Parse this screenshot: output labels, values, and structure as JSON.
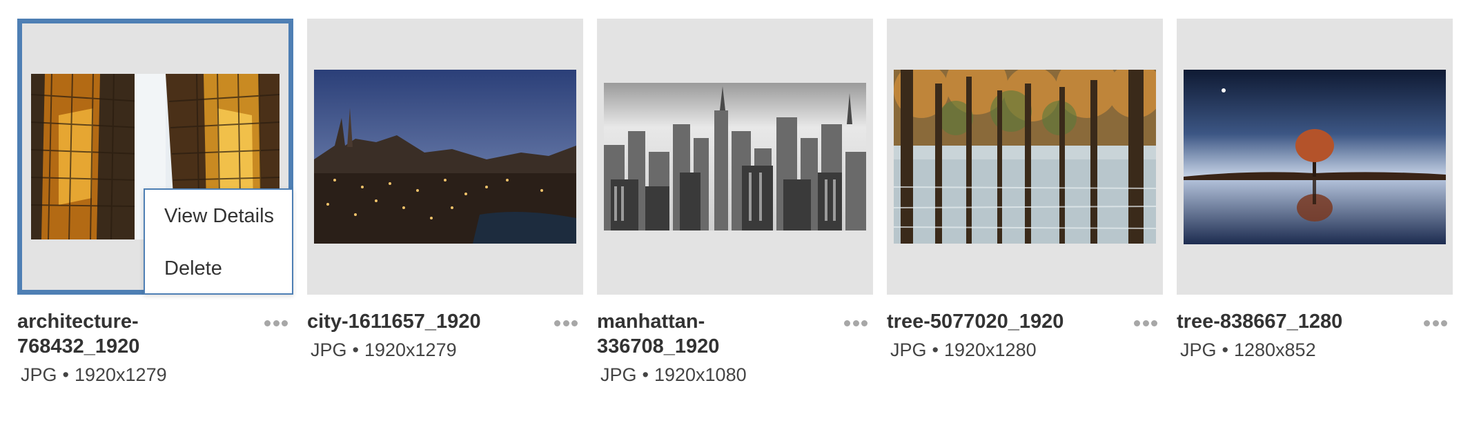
{
  "files": [
    {
      "name": "architecture-768432_1920",
      "name_line1": "architecture-",
      "name_line2": "768432_1920",
      "type": "JPG",
      "dimensions": "1920x1279",
      "selected": true
    },
    {
      "name": "city-1611657_1920",
      "type": "JPG",
      "dimensions": "1920x1279",
      "selected": false
    },
    {
      "name": "manhattan-336708_1920",
      "name_line1": "manhattan-",
      "name_line2": "336708_1920",
      "type": "JPG",
      "dimensions": "1920x1080",
      "selected": false
    },
    {
      "name": "tree-5077020_1920",
      "type": "JPG",
      "dimensions": "1920x1280",
      "selected": false
    },
    {
      "name": "tree-838667_1280",
      "type": "JPG",
      "dimensions": "1280x852",
      "selected": false
    }
  ],
  "details_separator": "•",
  "context_menu": {
    "view_details": "View Details",
    "delete": "Delete"
  },
  "colors": {
    "selection": "#4e7fb4",
    "thumb_bg": "#e3e3e3",
    "more_dots": "#a7a7a7"
  }
}
